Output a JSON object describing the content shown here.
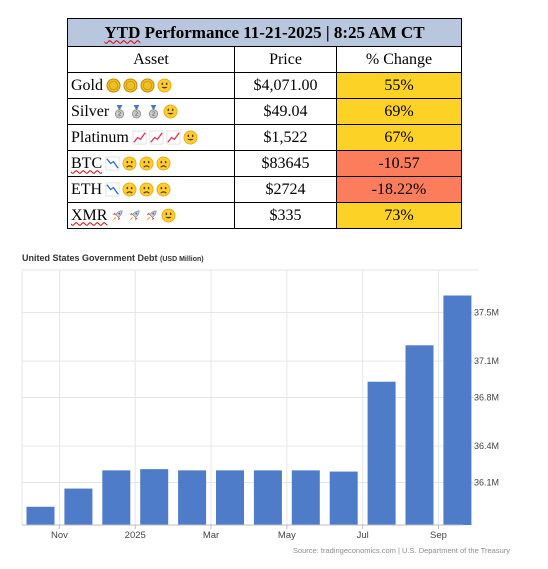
{
  "performance_table": {
    "title": "YTD Performance 11-21-2025 | 8:25 AM CT",
    "title_squiggle_word": "YTD",
    "title_rest": " Performance 11-21-2025 | 8:25 AM CT",
    "headers": [
      "Asset",
      "Price",
      "% Change"
    ],
    "rows": [
      {
        "asset": "Gold",
        "icons": [
          "coin-icon",
          "coin-icon",
          "coin-icon",
          "smiley-icon"
        ],
        "price": "$4,071.00",
        "change": "55%",
        "direction": "up"
      },
      {
        "asset": "Silver",
        "icons": [
          "medal-icon",
          "medal-icon",
          "medal-icon",
          "smiley-icon"
        ],
        "price": "$49.04",
        "change": "69%",
        "direction": "up"
      },
      {
        "asset": "Platinum",
        "icons": [
          "chart-up-icon",
          "chart-up-icon",
          "chart-up-icon",
          "smiley-icon"
        ],
        "price": "$1,522",
        "change": "67%",
        "direction": "up"
      },
      {
        "asset": "BTC",
        "icons": [
          "chart-down-icon",
          "frown-icon",
          "frown-icon",
          "frown-icon"
        ],
        "price": "$83645",
        "change": "-10.57",
        "direction": "down"
      },
      {
        "asset": "ETH",
        "icons": [
          "chart-down-icon",
          "frown-icon",
          "frown-icon",
          "frown-icon"
        ],
        "price": "$2724",
        "change": "-18.22%",
        "direction": "down"
      },
      {
        "asset": "XMR",
        "icons": [
          "rocket-icon",
          "rocket-icon",
          "rocket-icon",
          "smiley-icon"
        ],
        "price": "$335",
        "change": "73%",
        "direction": "up"
      }
    ],
    "colors": {
      "header_bg": "#b8c7dd",
      "positive_bg": "#fdd227",
      "negative_bg": "#fb7d5c"
    }
  },
  "chart_data": {
    "type": "bar",
    "title": "United States Government Debt",
    "units_label": "(USD Million)",
    "source": "Source: tradingeconomics.com | U.S. Department of the Treasury",
    "x_tick_labels": [
      "Nov",
      "2025",
      "Mar",
      "May",
      "Jul",
      "Sep"
    ],
    "y_tick_labels": [
      "36.1M",
      "36.4M",
      "36.8M",
      "37.1M",
      "37.5M"
    ],
    "y_tick_values": [
      36.1,
      36.4,
      36.8,
      37.1,
      37.5
    ],
    "ylim": [
      35.75,
      37.85
    ],
    "ylabel_position": "right",
    "grid": true,
    "bar_color": "#4f7cc9",
    "values": [
      35.9,
      36.05,
      36.2,
      36.21,
      36.2,
      36.2,
      36.2,
      36.2,
      36.19,
      36.93,
      37.23,
      37.64
    ],
    "tick_after_bar": [
      0,
      2,
      4,
      6,
      8,
      10
    ]
  }
}
